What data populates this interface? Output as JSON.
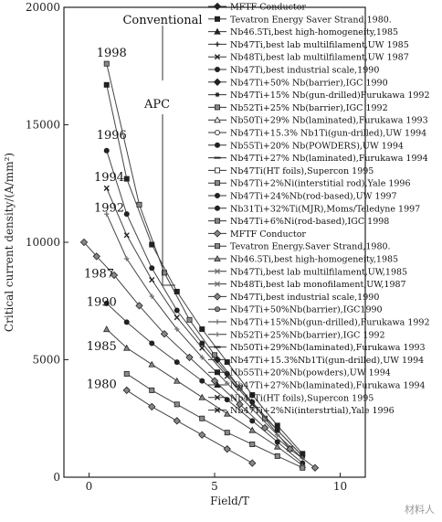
{
  "chart_data": {
    "type": "line",
    "xlabel": "Field/T",
    "ylabel": "Critical current density/(A/mm²)",
    "xlim": [
      -1,
      11
    ],
    "ylim": [
      0,
      20000
    ],
    "x_ticks": [
      {
        "v": 0,
        "label": "0"
      },
      {
        "v": 5,
        "label": "5"
      },
      {
        "v": 10,
        "label": "10"
      }
    ],
    "y_ticks": [
      {
        "v": 0,
        "label": "0"
      },
      {
        "v": 5000,
        "label": "5000"
      },
      {
        "v": 10000,
        "label": "10000"
      },
      {
        "v": 15000,
        "label": "15000"
      },
      {
        "v": 20000,
        "label": "20000"
      }
    ],
    "group_labels": [
      "Conventional",
      "APC"
    ],
    "year_annotations": [
      {
        "text": "1998",
        "x": 0.9,
        "y": 17900
      },
      {
        "text": "1996",
        "x": 0.9,
        "y": 14400
      },
      {
        "text": "1994",
        "x": 0.8,
        "y": 12600
      },
      {
        "text": "1992",
        "x": 0.8,
        "y": 11300
      },
      {
        "text": "1987",
        "x": 0.4,
        "y": 8500
      },
      {
        "text": "1990",
        "x": 0.5,
        "y": 7300
      },
      {
        "text": "1985",
        "x": 0.5,
        "y": 5400
      },
      {
        "text": "1980",
        "x": 0.5,
        "y": 3800
      }
    ],
    "legend": [
      {
        "label": "MFTF Conductor",
        "marker": "diamond",
        "fill": "dark"
      },
      {
        "label": "Tevatron Energy Saver Strand,1980.",
        "marker": "square",
        "fill": "dark"
      },
      {
        "label": "Nb46.5Ti,best high-homogeneity,1985",
        "marker": "triangle",
        "fill": "dark"
      },
      {
        "label": "Nb47Ti,best lab multilfilament,UW 1985",
        "marker": "cross",
        "fill": "dark"
      },
      {
        "label": "Nb48Ti,best lab multilfilament,UW 1987",
        "marker": "x",
        "fill": "dark"
      },
      {
        "label": "Nb47Ti,best industrial scale,1990",
        "marker": "circle",
        "fill": "dark"
      },
      {
        "label": "Nb47Ti+50% Nb(barrier),IGC 1990",
        "marker": "diamond",
        "fill": "dark"
      },
      {
        "label": "Nb47Ti+15% Nb(gun-drilled)Furukawa 1992",
        "marker": "star",
        "fill": "dark"
      },
      {
        "label": "Nb52Ti+25% Nb(barrier),IGC 1992",
        "marker": "square",
        "fill": "gray"
      },
      {
        "label": "Nb50Ti+29% Nb(laminated),Furukawa 1993",
        "marker": "triangle",
        "fill": "open"
      },
      {
        "label": "Nb47Ti+15.3% Nb1Ti(gun-drilled),UW 1994",
        "marker": "circle",
        "fill": "open"
      },
      {
        "label": "Nb55Ti+20% Nb(POWDERS),UW 1994",
        "marker": "circle",
        "fill": "dark"
      },
      {
        "label": "Nb47Ti+27% Nb(laminated),Furukawa 1994",
        "marker": "dash",
        "fill": "dark"
      },
      {
        "label": "Nb47Ti(HT foils),Supercon 1995",
        "marker": "square",
        "fill": "open"
      },
      {
        "label": "Nb47Ti+2%Ni(interstitial rod),Yale 1996",
        "marker": "square",
        "fill": "gray"
      },
      {
        "label": "Nb47Ti+24%Nb(rod-based),UW 1997",
        "marker": "circle",
        "fill": "dark"
      },
      {
        "label": "Nb31Ti+32%Ti(MJR),Moms/Teledyne 1997",
        "marker": "circle",
        "fill": "dark"
      },
      {
        "label": "Nb47Ti+6%Ni(rod-based),IGC 1998",
        "marker": "square",
        "fill": "gray"
      },
      {
        "label": "MFTF Conductor",
        "marker": "diamond",
        "fill": "gray"
      },
      {
        "label": "Tevatron Energy.Saver Strand,1980.",
        "marker": "square",
        "fill": "gray"
      },
      {
        "label": "Nb46.5Ti,best high-homogeneity,1985",
        "marker": "triangle",
        "fill": "gray"
      },
      {
        "label": "Nb47Ti,best lab multilfilament,UW,1985",
        "marker": "x",
        "fill": "gray"
      },
      {
        "label": "Nb48Ti,best lab monofilament,UW,1987",
        "marker": "x",
        "fill": "gray"
      },
      {
        "label": "Nb47Ti,best industrial scale,1990",
        "marker": "diamond",
        "fill": "gray"
      },
      {
        "label": "Nb47Ti+50%Nb(barrier),IGC1990",
        "marker": "circle",
        "fill": "gray"
      },
      {
        "label": "Nb47Ti+15%Nb(gun-drilled),Furukawa 1992",
        "marker": "cross",
        "fill": "gray"
      },
      {
        "label": "Nb52Ti+25%Nb(barrier),IGC 1992",
        "marker": "cross",
        "fill": "gray"
      },
      {
        "label": "Nb50Ti+29%Nb(laminated),Furukawa 1993",
        "marker": "dash",
        "fill": "dark"
      },
      {
        "label": "Nb47Ti+15.3%Nb1Ti(gun-drilled),UW 1994",
        "marker": "diamond",
        "fill": "dark"
      },
      {
        "label": "Nb55Ti+20%Nb(powders),UW 1994",
        "marker": "square",
        "fill": "dark"
      },
      {
        "label": "Nb47Ti+27%Nb(laminated),Furukawa 1994",
        "marker": "triangle",
        "fill": "dark"
      },
      {
        "label": "Nb47Ti(HT foils),Supercon 1995",
        "marker": "x",
        "fill": "dark"
      },
      {
        "label": "Nb47Ti+2%Ni(interstrtial),Yale 1996",
        "marker": "x",
        "fill": "dark"
      }
    ],
    "series": [
      {
        "year": "1998",
        "marker": "square",
        "fill": "gray",
        "x": [
          0.7,
          2,
          3,
          4,
          5,
          6,
          7,
          8
        ],
        "y": [
          17600,
          11600,
          8700,
          6700,
          5200,
          3800,
          2500,
          1200
        ]
      },
      {
        "year": "1997",
        "marker": "square",
        "fill": "dark",
        "x": [
          0.7,
          1.5,
          2.5,
          3.5,
          4.5,
          5.5,
          6.5,
          7.5,
          8.5
        ],
        "y": [
          16700,
          12700,
          9900,
          7900,
          6300,
          4900,
          3500,
          2200,
          1000
        ]
      },
      {
        "year": "1996",
        "marker": "circle",
        "fill": "dark",
        "x": [
          0.7,
          1.5,
          2.5,
          3.5,
          4.5,
          5.5,
          6.5,
          7.5,
          8.5
        ],
        "y": [
          13900,
          11200,
          8900,
          7100,
          5700,
          4400,
          3200,
          2000,
          900
        ]
      },
      {
        "year": "1994",
        "marker": "x",
        "fill": "dark",
        "x": [
          0.7,
          1.5,
          2.5,
          3.5,
          4.5,
          5.5,
          6.5,
          7.5,
          8.5
        ],
        "y": [
          12300,
          10300,
          8400,
          6800,
          5500,
          4300,
          3100,
          2000,
          900
        ]
      },
      {
        "year": "1992",
        "marker": "cross",
        "fill": "gray",
        "x": [
          0.7,
          1.5,
          2.5,
          3.5,
          4.5,
          5.5,
          6.5,
          7.5,
          8.5
        ],
        "y": [
          11200,
          9300,
          7700,
          6300,
          5100,
          4000,
          2900,
          1800,
          800
        ]
      },
      {
        "year": "1987",
        "marker": "diamond",
        "fill": "gray",
        "x": [
          -0.2,
          0.3,
          1,
          2,
          3,
          4,
          5,
          6,
          7,
          8,
          9
        ],
        "y": [
          10000,
          9400,
          8600,
          7300,
          6100,
          5100,
          4100,
          3100,
          2100,
          1200,
          400
        ]
      },
      {
        "year": "1990",
        "marker": "circle",
        "fill": "dark",
        "x": [
          0.7,
          1.5,
          2.5,
          3.5,
          4.5,
          5.5,
          6.5,
          7.5,
          8.5
        ],
        "y": [
          7400,
          6600,
          5700,
          4900,
          4100,
          3300,
          2400,
          1500,
          600
        ]
      },
      {
        "year": "1985",
        "marker": "triangle",
        "fill": "gray",
        "x": [
          0.7,
          1.5,
          2.5,
          3.5,
          4.5,
          5.5,
          6.5,
          7.5,
          8.5
        ],
        "y": [
          6300,
          5500,
          4800,
          4100,
          3400,
          2700,
          2000,
          1300,
          500
        ]
      },
      {
        "year": "1980",
        "marker": "square",
        "fill": "gray",
        "x": [
          1.5,
          2.5,
          3.5,
          4.5,
          5.5,
          6.5,
          7.5,
          8.5
        ],
        "y": [
          4400,
          3700,
          3100,
          2500,
          1900,
          1400,
          900,
          400
        ]
      },
      {
        "year": "MFTF",
        "marker": "diamond",
        "fill": "gray",
        "x": [
          1.5,
          2.5,
          3.5,
          4.5,
          5.5,
          6.5
        ],
        "y": [
          3700,
          3000,
          2400,
          1800,
          1200,
          600
        ]
      }
    ]
  },
  "watermark": "材料人"
}
